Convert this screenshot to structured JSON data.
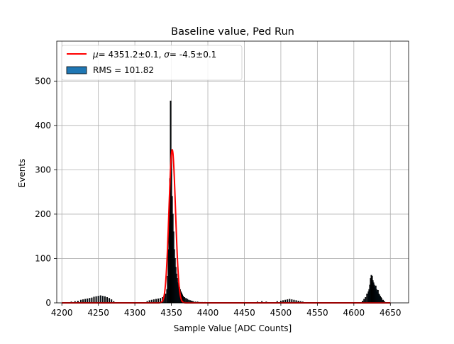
{
  "chart_data": {
    "type": "bar",
    "title": "Baseline value, Ped Run",
    "xlabel": "Sample Value [ADC Counts]",
    "ylabel": "Events",
    "xlim": [
      4193,
      4675
    ],
    "ylim": [
      0,
      590
    ],
    "xticks": [
      4200,
      4250,
      4300,
      4350,
      4400,
      4450,
      4500,
      4550,
      4600,
      4650
    ],
    "yticks": [
      0,
      100,
      200,
      300,
      400,
      500
    ],
    "grid": true,
    "legend_position": "top-left",
    "histogram": {
      "name": "RMS = 101.82",
      "color": "#1f77b4",
      "edge_color": "#000000",
      "bin_width": 1,
      "x": [
        4213,
        4218,
        4222,
        4226,
        4229,
        4232,
        4235,
        4238,
        4241,
        4244,
        4247,
        4250,
        4253,
        4256,
        4259,
        4262,
        4265,
        4268,
        4271,
        4317,
        4320,
        4323,
        4326,
        4329,
        4332,
        4335,
        4338,
        4340,
        4342,
        4344,
        4345,
        4346,
        4347,
        4348,
        4349,
        4350,
        4351,
        4352,
        4353,
        4354,
        4355,
        4356,
        4357,
        4358,
        4359,
        4360,
        4361,
        4362,
        4363,
        4364,
        4365,
        4366,
        4368,
        4370,
        4372,
        4374,
        4376,
        4378,
        4380,
        4383,
        4386,
        4389,
        4392,
        4396,
        4468,
        4474,
        4480,
        4495,
        4500,
        4503,
        4506,
        4509,
        4512,
        4515,
        4518,
        4521,
        4524,
        4527,
        4530,
        4612,
        4614,
        4616,
        4618,
        4620,
        4621,
        4622,
        4623,
        4624,
        4625,
        4626,
        4627,
        4628,
        4629,
        4630,
        4631,
        4632,
        4633,
        4634,
        4635,
        4636,
        4637,
        4638,
        4640,
        4642
      ],
      "values": [
        2,
        3,
        4,
        6,
        7,
        8,
        9,
        10,
        11,
        13,
        14,
        15,
        16,
        15,
        14,
        12,
        10,
        7,
        3,
        3,
        5,
        6,
        7,
        8,
        9,
        10,
        12,
        15,
        20,
        30,
        60,
        120,
        200,
        280,
        455,
        340,
        240,
        200,
        160,
        120,
        100,
        80,
        65,
        55,
        45,
        40,
        35,
        30,
        25,
        22,
        18,
        15,
        12,
        10,
        8,
        6,
        5,
        4,
        3,
        2,
        2,
        1,
        1,
        1,
        2,
        3,
        2,
        3,
        4,
        5,
        6,
        7,
        8,
        7,
        6,
        5,
        4,
        3,
        2,
        4,
        8,
        12,
        20,
        25,
        30,
        40,
        55,
        62,
        60,
        50,
        45,
        40,
        35,
        38,
        30,
        25,
        28,
        20,
        18,
        15,
        12,
        10,
        6,
        3
      ]
    },
    "fit": {
      "name": "$\\mu = 4351.2\\pm0.1$, $\\sigma = -4.5\\pm0.1$",
      "label_text": "= 4351.2±0.1,  = -4.5±0.1",
      "mu_symbol": "μ",
      "sigma_symbol": "σ",
      "color": "#ff0000",
      "mu": 4351.2,
      "sigma": -4.5,
      "amplitude": 345,
      "x_range": [
        4200,
        4650
      ]
    }
  }
}
